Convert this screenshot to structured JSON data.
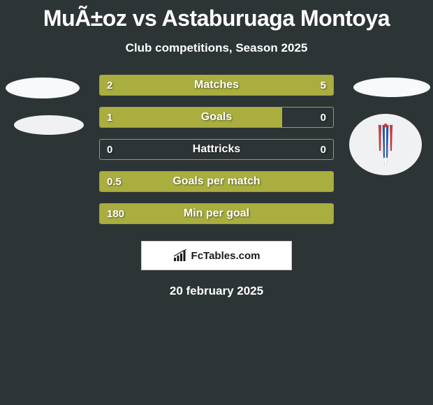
{
  "header": {
    "title": "MuÃ±oz vs Astaburuaga Montoya",
    "subtitle": "Club competitions, Season 2025"
  },
  "colors": {
    "background": "#2d3436",
    "bar_fill": "#a9ae3f",
    "bar_border": "#9ba04a",
    "avatar_bg": "#f8f9fa",
    "text": "#ffffff"
  },
  "stats": [
    {
      "label": "Matches",
      "left_value": "2",
      "right_value": "5",
      "left_pct": 28,
      "right_pct": 72
    },
    {
      "label": "Goals",
      "left_value": "1",
      "right_value": "0",
      "left_pct": 78,
      "right_pct": 0
    },
    {
      "label": "Hattricks",
      "left_value": "0",
      "right_value": "0",
      "left_pct": 0,
      "right_pct": 0
    },
    {
      "label": "Goals per match",
      "left_value": "0.5",
      "right_value": "",
      "left_pct": 100,
      "right_pct": 0
    },
    {
      "label": "Min per goal",
      "left_value": "180",
      "right_value": "",
      "left_pct": 100,
      "right_pct": 0
    }
  ],
  "branding": {
    "text": "FcTables.com"
  },
  "footer": {
    "date": "20 february 2025"
  },
  "club_badge": {
    "stripe_colors": [
      "#c93a3a",
      "#2e5aa8",
      "#2e5aa8",
      "#c93a3a"
    ],
    "cross_color": "#c93a3a"
  }
}
